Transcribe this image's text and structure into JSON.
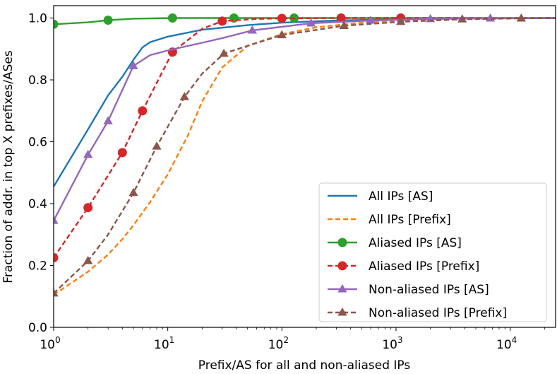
{
  "chart_data": {
    "type": "line",
    "title": "",
    "xlabel": "Prefix/AS for all and non-aliased IPs",
    "ylabel": "Fraction of addr. in top X prefixes/ASes",
    "xscale": "log",
    "xlim": [
      1,
      25000
    ],
    "ylim": [
      0.0,
      1.04
    ],
    "xticks": [
      {
        "value": 1,
        "base": "10",
        "exp": "0"
      },
      {
        "value": 10,
        "base": "10",
        "exp": "1"
      },
      {
        "value": 100,
        "base": "10",
        "exp": "2"
      },
      {
        "value": 1000,
        "base": "10",
        "exp": "3"
      },
      {
        "value": 10000,
        "base": "10",
        "exp": "4"
      }
    ],
    "yticks": [
      {
        "value": 0.0,
        "label": "0.0"
      },
      {
        "value": 0.2,
        "label": "0.2"
      },
      {
        "value": 0.4,
        "label": "0.4"
      },
      {
        "value": 0.6,
        "label": "0.6"
      },
      {
        "value": 0.8,
        "label": "0.8"
      },
      {
        "value": 1.0,
        "label": "1.0"
      }
    ],
    "grid": false,
    "legend_position": "lower-right",
    "series": [
      {
        "name": "All IPs [AS]",
        "color": "#1f77b4",
        "dash": "solid",
        "marker": "none",
        "x": [
          1,
          2,
          3,
          4,
          5,
          6,
          7,
          10,
          20,
          50,
          100,
          300,
          1000,
          3000,
          10000,
          25000
        ],
        "y": [
          0.455,
          0.64,
          0.75,
          0.81,
          0.865,
          0.905,
          0.922,
          0.94,
          0.962,
          0.977,
          0.985,
          0.992,
          0.996,
          0.998,
          0.999,
          1.0
        ]
      },
      {
        "name": "All IPs [Prefix]",
        "color": "#ff7f0e",
        "dash": "dashed",
        "marker": "none",
        "x": [
          1,
          2,
          3,
          4,
          5,
          7,
          10,
          15,
          20,
          30,
          50,
          100,
          200,
          500,
          1000,
          3000,
          10000,
          25000
        ],
        "y": [
          0.105,
          0.18,
          0.235,
          0.285,
          0.33,
          0.405,
          0.495,
          0.62,
          0.73,
          0.84,
          0.91,
          0.948,
          0.97,
          0.985,
          0.992,
          0.997,
          0.999,
          1.0
        ]
      },
      {
        "name": "Aliased IPs [AS]",
        "color": "#2ca02c",
        "dash": "solid",
        "marker": "circle",
        "x": [
          1,
          2,
          3,
          5,
          11,
          38,
          128,
          25000
        ],
        "y": [
          0.98,
          0.986,
          0.993,
          0.998,
          1.0,
          1.0,
          1.0,
          1.0
        ],
        "marker_x": [
          1,
          3,
          11,
          38,
          128
        ],
        "marker_y": [
          0.98,
          0.993,
          1.0,
          1.0,
          1.0
        ]
      },
      {
        "name": "Aliased IPs [Prefix]",
        "color": "#d62728",
        "dash": "dashed",
        "marker": "circle",
        "x": [
          1,
          2,
          4,
          6,
          11,
          20,
          30,
          60,
          100,
          330,
          1100,
          25000
        ],
        "y": [
          0.225,
          0.387,
          0.565,
          0.7,
          0.89,
          0.965,
          0.99,
          0.997,
          0.999,
          1.0,
          1.0,
          1.0
        ],
        "marker_x": [
          1,
          2,
          4,
          6,
          11,
          30,
          100,
          330,
          1100
        ],
        "marker_y": [
          0.225,
          0.387,
          0.565,
          0.7,
          0.89,
          0.99,
          0.999,
          1.0,
          1.0
        ]
      },
      {
        "name": "Non-aliased IPs [AS]",
        "color": "#9467bd",
        "dash": "solid",
        "marker": "triangle",
        "x": [
          1,
          2,
          3,
          5,
          7,
          10,
          15,
          20,
          30,
          55,
          180,
          600,
          2000,
          6700,
          25000
        ],
        "y": [
          0.345,
          0.558,
          0.667,
          0.845,
          0.88,
          0.895,
          0.91,
          0.92,
          0.935,
          0.96,
          0.983,
          0.992,
          0.997,
          0.999,
          1.0
        ],
        "marker_x": [
          1,
          2,
          3,
          5,
          55,
          180,
          600,
          2000,
          6700
        ],
        "marker_y": [
          0.345,
          0.558,
          0.667,
          0.845,
          0.96,
          0.983,
          0.992,
          0.997,
          0.999
        ]
      },
      {
        "name": "Non-aliased IPs [Prefix]",
        "color": "#8c564b",
        "dash": "dashed",
        "marker": "triangle",
        "x": [
          1,
          2,
          3,
          5,
          8,
          14,
          20,
          31,
          55,
          100,
          350,
          1100,
          3800,
          12500,
          25000
        ],
        "y": [
          0.11,
          0.215,
          0.3,
          0.435,
          0.585,
          0.745,
          0.82,
          0.885,
          0.915,
          0.945,
          0.975,
          0.988,
          0.996,
          0.999,
          1.0
        ],
        "marker_x": [
          1,
          2,
          5,
          8,
          14,
          31,
          100,
          350,
          1100,
          3800,
          12500
        ],
        "marker_y": [
          0.11,
          0.215,
          0.435,
          0.585,
          0.745,
          0.885,
          0.945,
          0.975,
          0.988,
          0.996,
          0.999
        ]
      }
    ]
  }
}
